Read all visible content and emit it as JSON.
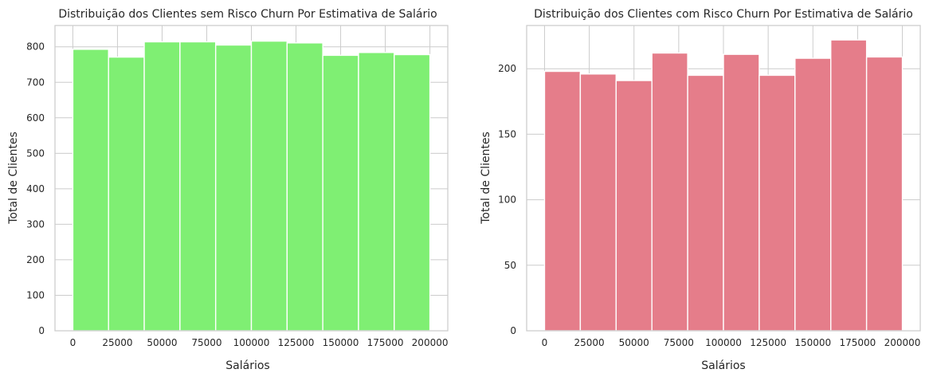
{
  "chart_data": [
    {
      "type": "bar",
      "title": "Distribuição dos Clientes sem Risco Churn Por Estimativa de Salário",
      "xlabel": "Salários",
      "ylabel": "Total de Clientes",
      "bin_edges": [
        0,
        20000,
        40000,
        60000,
        80000,
        100000,
        120000,
        140000,
        160000,
        180000,
        200000
      ],
      "values": [
        793,
        771,
        814,
        814,
        805,
        816,
        811,
        776,
        784,
        778
      ],
      "xticks": [
        0,
        25000,
        50000,
        75000,
        100000,
        125000,
        150000,
        175000,
        200000
      ],
      "yticks": [
        0,
        100,
        200,
        300,
        400,
        500,
        600,
        700,
        800
      ],
      "xlim": [
        -10000,
        210000
      ],
      "ylim": [
        0,
        860
      ],
      "color": "#7fef73",
      "grid": true
    },
    {
      "type": "bar",
      "title": "Distribuição dos Clientes com Risco Churn Por Estimativa de Salário",
      "xlabel": "Salários",
      "ylabel": "Total de Clientes",
      "bin_edges": [
        0,
        20000,
        40000,
        60000,
        80000,
        100000,
        120000,
        140000,
        160000,
        180000,
        200000
      ],
      "values": [
        198,
        196,
        191,
        212,
        195,
        211,
        195,
        208,
        222,
        209
      ],
      "xticks": [
        0,
        25000,
        50000,
        75000,
        100000,
        125000,
        150000,
        175000,
        200000
      ],
      "yticks": [
        0,
        50,
        100,
        150,
        200
      ],
      "xlim": [
        -10000,
        210000
      ],
      "ylim": [
        0,
        233
      ],
      "color": "#e57d8a",
      "grid": true
    }
  ]
}
